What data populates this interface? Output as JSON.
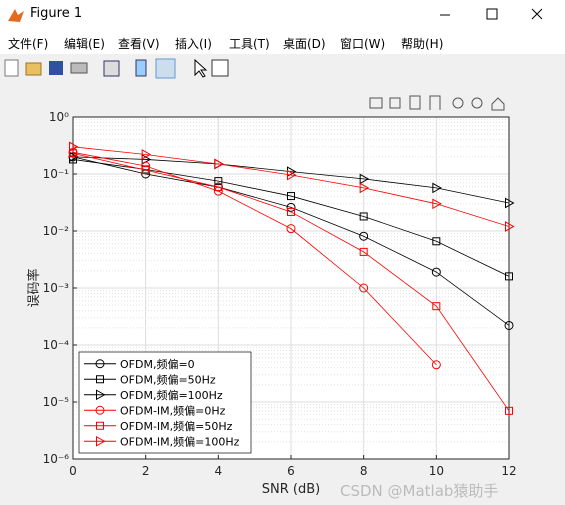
{
  "window": {
    "title": "Figure 1",
    "menu": [
      "文件(F)",
      "编辑(E)",
      "查看(V)",
      "插入(I)",
      "工具(T)",
      "桌面(D)",
      "窗口(W)",
      "帮助(H)"
    ],
    "watermark": "CSDN @Matlab猿助手"
  },
  "chart_data": {
    "type": "line",
    "xlabel": "SNR (dB)",
    "ylabel": "误码率",
    "x": [
      0,
      2,
      4,
      6,
      8,
      10,
      12
    ],
    "xlim": [
      0,
      12
    ],
    "xticks": [
      0,
      2,
      4,
      6,
      8,
      10,
      12
    ],
    "ylim": [
      1e-06,
      1
    ],
    "log_y": true,
    "grid": true,
    "legend": "lower left",
    "yticks": [
      {
        "value": 1e-06,
        "label": "10⁻⁶"
      },
      {
        "value": 1e-05,
        "label": "10⁻⁵"
      },
      {
        "value": 0.0001,
        "label": "10⁻⁴"
      },
      {
        "value": 0.001,
        "label": "10⁻³"
      },
      {
        "value": 0.01,
        "label": "10⁻²"
      },
      {
        "value": 0.1,
        "label": "10⁻¹"
      },
      {
        "value": 1,
        "label": "10⁰"
      }
    ],
    "series": [
      {
        "name": "OFDM,频偏=0",
        "color": "#000000",
        "marker": "circle",
        "values": [
          0.2,
          0.1,
          0.059,
          0.026,
          0.0081,
          0.0019,
          0.00022
        ]
      },
      {
        "name": "OFDM,频偏=50Hz",
        "color": "#000000",
        "marker": "square",
        "values": [
          0.18,
          0.12,
          0.075,
          0.041,
          0.018,
          0.0066,
          0.0016
        ]
      },
      {
        "name": "OFDM,频偏=100Hz",
        "color": "#000000",
        "marker": "triangle",
        "values": [
          0.2,
          0.18,
          0.15,
          0.11,
          0.082,
          0.057,
          0.031
        ]
      },
      {
        "name": "OFDM-IM,频偏=0Hz",
        "color": "#ff0000",
        "marker": "circle",
        "values": [
          0.24,
          0.138,
          0.05,
          0.011,
          0.001,
          4.5e-05,
          null
        ]
      },
      {
        "name": "OFDM-IM,频偏=50Hz",
        "color": "#ff0000",
        "marker": "square",
        "values": [
          0.23,
          0.117,
          0.059,
          0.0216,
          0.0043,
          0.00048,
          7e-06
        ]
      },
      {
        "name": "OFDM-IM,频偏=100Hz",
        "color": "#ff0000",
        "marker": "triangle",
        "values": [
          0.3,
          0.22,
          0.15,
          0.096,
          0.057,
          0.03,
          0.012
        ]
      }
    ]
  }
}
